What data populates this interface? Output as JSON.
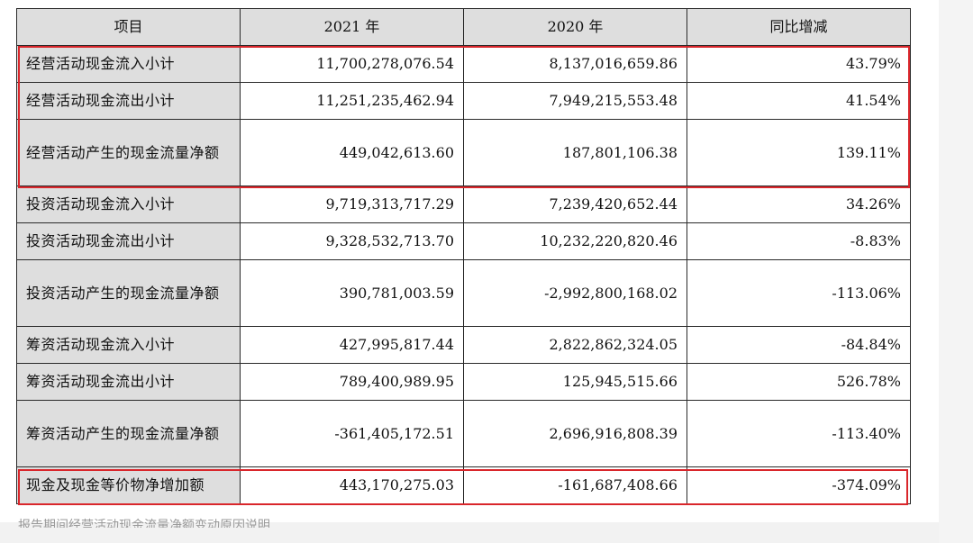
{
  "table": {
    "headers": [
      "项目",
      "2021 年",
      "2020 年",
      "同比增减"
    ],
    "rows": [
      {
        "item": "经营活动现金流入小计",
        "y2021": "11,700,278,076.54",
        "y2020": "8,137,016,659.86",
        "change": "43.79%"
      },
      {
        "item": "经营活动现金流出小计",
        "y2021": "11,251,235,462.94",
        "y2020": "7,949,215,553.48",
        "change": "41.54%"
      },
      {
        "item": "经营活动产生的现金流量净额",
        "y2021": "449,042,613.60",
        "y2020": "187,801,106.38",
        "change": "139.11%"
      },
      {
        "item": "投资活动现金流入小计",
        "y2021": "9,719,313,717.29",
        "y2020": "7,239,420,652.44",
        "change": "34.26%"
      },
      {
        "item": "投资活动现金流出小计",
        "y2021": "9,328,532,713.70",
        "y2020": "10,232,220,820.46",
        "change": "-8.83%"
      },
      {
        "item": "投资活动产生的现金流量净额",
        "y2021": "390,781,003.59",
        "y2020": "-2,992,800,168.02",
        "change": "-113.06%"
      },
      {
        "item": "筹资活动现金流入小计",
        "y2021": "427,995,817.44",
        "y2020": "2,822,862,324.05",
        "change": "-84.84%"
      },
      {
        "item": "筹资活动现金流出小计",
        "y2021": "789,400,989.95",
        "y2020": "125,945,515.66",
        "change": "526.78%"
      },
      {
        "item": "筹资活动产生的现金流量净额",
        "y2021": "-361,405,172.51",
        "y2020": "2,696,916,808.39",
        "change": "-113.40%"
      },
      {
        "item": "现金及现金等价物净增加额",
        "y2021": "443,170,275.03",
        "y2020": "-161,687,408.66",
        "change": "-374.09%"
      }
    ]
  },
  "highlight_color": "#d9262b",
  "footer_note": "报告期间经营活动现金流量净额变动原因说明"
}
